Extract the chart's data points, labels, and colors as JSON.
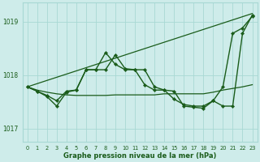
{
  "title": "Graphe pression niveau de la mer (hPa)",
  "bg_color": "#ceecea",
  "grid_color": "#a8d8d4",
  "line_color": "#1a5c1a",
  "xlim": [
    -0.5,
    23.5
  ],
  "ylim": [
    1016.75,
    1019.35
  ],
  "yticks": [
    1017,
    1018,
    1019
  ],
  "xtick_labels": [
    "0",
    "1",
    "2",
    "3",
    "4",
    "5",
    "6",
    "7",
    "8",
    "9",
    "10",
    "11",
    "12",
    "13",
    "14",
    "15",
    "16",
    "17",
    "18",
    "19",
    "20",
    "21",
    "22",
    "23"
  ],
  "series": [
    {
      "x": [
        0,
        23
      ],
      "y": [
        1017.78,
        1019.15
      ],
      "marker": false,
      "lw": 0.9
    },
    {
      "x": [
        0,
        1,
        2,
        3,
        4,
        5,
        6,
        7,
        8,
        9,
        10,
        11,
        12,
        13,
        14,
        15,
        16,
        17,
        18,
        19,
        20,
        21,
        22,
        23
      ],
      "y": [
        1017.78,
        1017.72,
        1017.68,
        1017.65,
        1017.63,
        1017.62,
        1017.62,
        1017.62,
        1017.62,
        1017.63,
        1017.63,
        1017.63,
        1017.63,
        1017.63,
        1017.65,
        1017.65,
        1017.65,
        1017.65,
        1017.65,
        1017.68,
        1017.72,
        1017.75,
        1017.78,
        1017.82
      ],
      "marker": false,
      "lw": 0.9
    },
    {
      "x": [
        0,
        1,
        2,
        3,
        4,
        5,
        6,
        7,
        8,
        9,
        10,
        11,
        12,
        13,
        14,
        15,
        16,
        17,
        18,
        19,
        20,
        21,
        22,
        23
      ],
      "y": [
        1017.78,
        1017.7,
        1017.6,
        1017.42,
        1017.68,
        1017.72,
        1018.1,
        1018.1,
        1018.42,
        1018.2,
        1018.1,
        1018.1,
        1017.82,
        1017.72,
        1017.72,
        1017.7,
        1017.42,
        1017.4,
        1017.38,
        1017.52,
        1017.42,
        1017.42,
        1018.78,
        1019.12
      ],
      "marker": true,
      "lw": 1.0
    },
    {
      "x": [
        0,
        1,
        2,
        3,
        4,
        5,
        6,
        7,
        8,
        9,
        10,
        11,
        12,
        13,
        14,
        15,
        16,
        17,
        18,
        19,
        20,
        21,
        22,
        23
      ],
      "y": [
        1017.78,
        1017.7,
        1017.62,
        1017.52,
        1017.7,
        1017.72,
        1018.1,
        1018.1,
        1018.1,
        1018.38,
        1018.12,
        1018.1,
        1018.1,
        1017.78,
        1017.72,
        1017.55,
        1017.45,
        1017.42,
        1017.42,
        1017.52,
        1017.78,
        1018.78,
        1018.88,
        1019.1
      ],
      "marker": true,
      "lw": 1.0
    }
  ]
}
